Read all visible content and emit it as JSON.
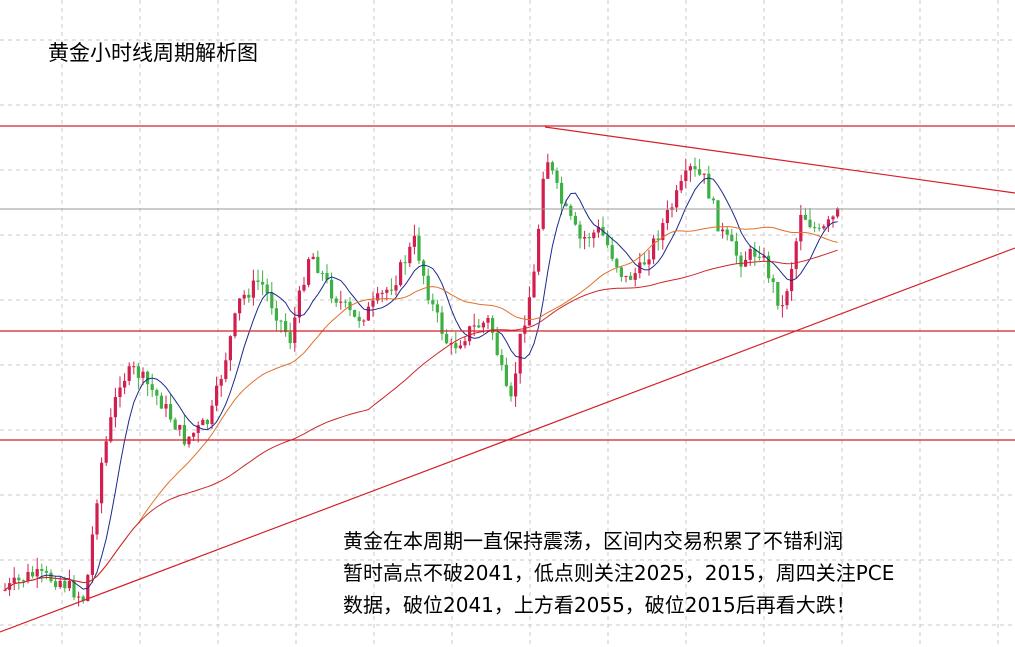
{
  "title": "黄金小时线周期解析图",
  "annotation": {
    "lines": [
      "黄金在本周期一直保持震荡，区间内交易积累了不错利润",
      "暂时高点不破2041，低点则关注2025，2015，周四关注PCE",
      "数据，破位2041，上方看2055，破位2015后再看大跌！"
    ]
  }
}
